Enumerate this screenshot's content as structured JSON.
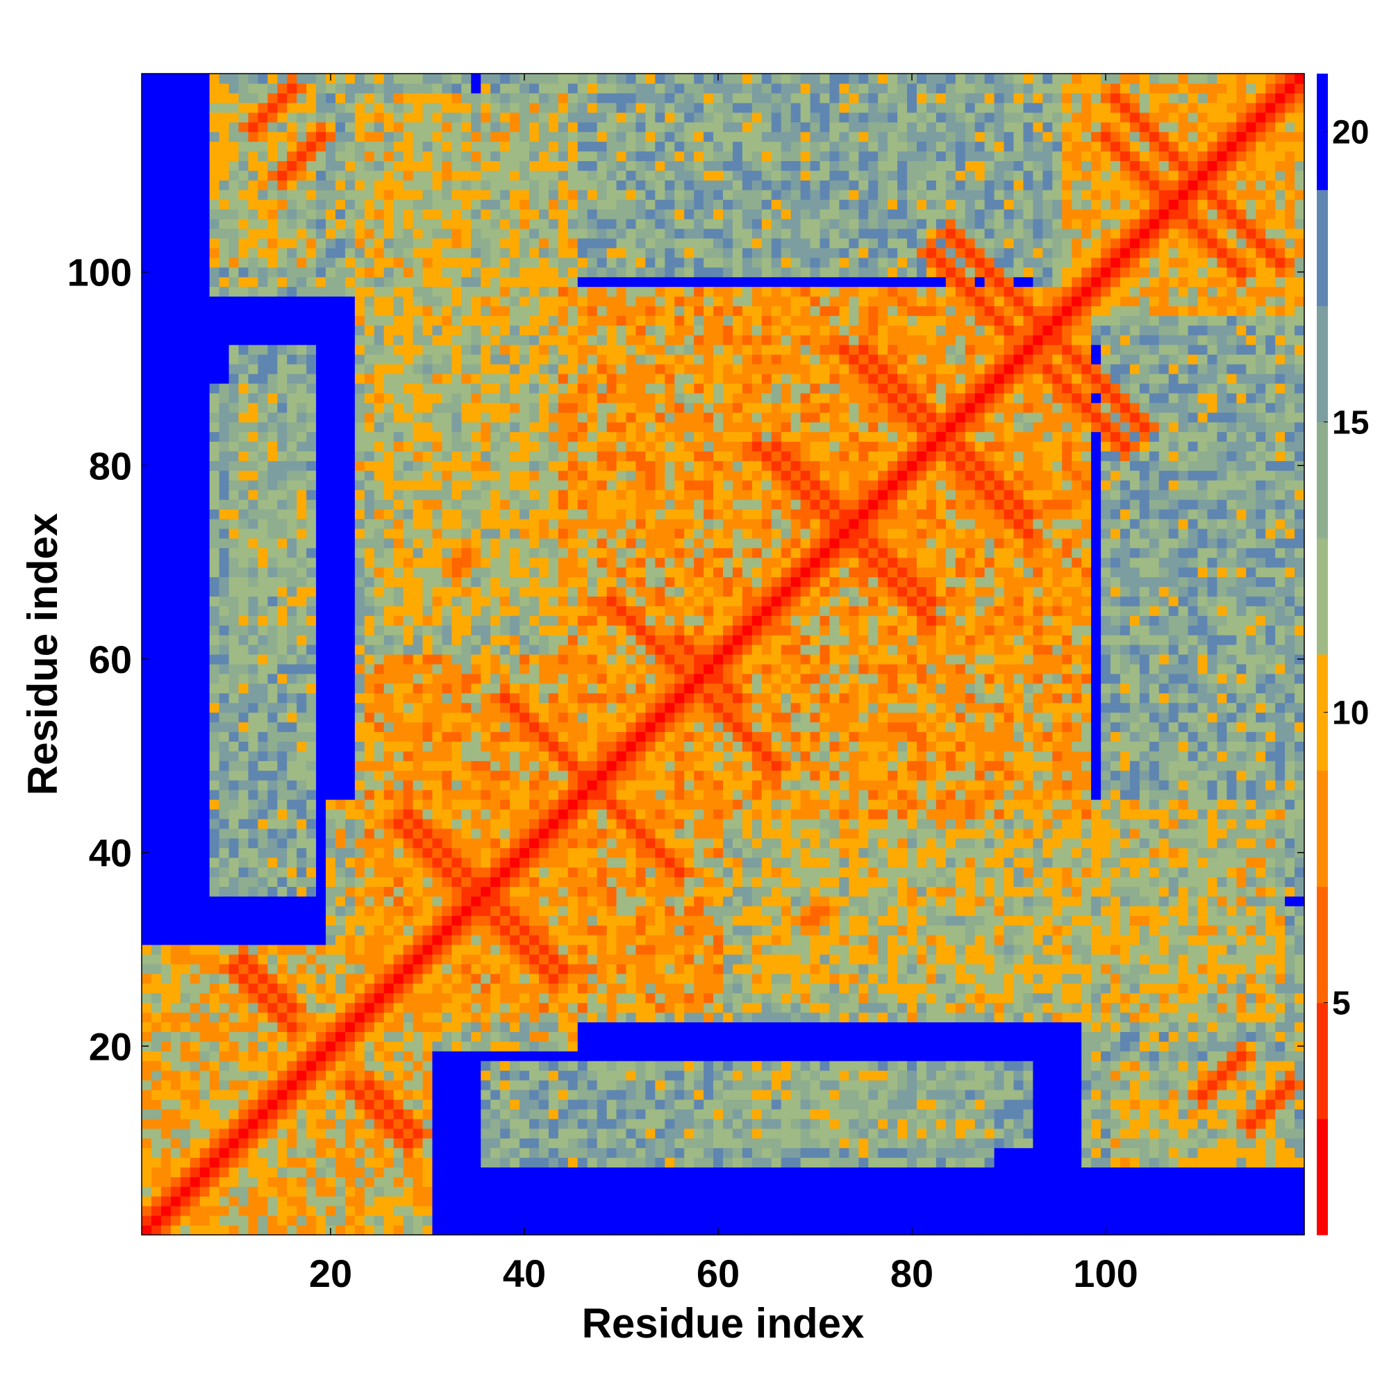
{
  "chart_data": {
    "type": "heatmap",
    "title": "",
    "xlabel": "Residue index",
    "ylabel": "Residue index",
    "n_residues": 120,
    "xlim": [
      1,
      120
    ],
    "ylim": [
      1,
      120
    ],
    "x_ticks": [
      20,
      40,
      60,
      80,
      100
    ],
    "y_ticks": [
      20,
      40,
      60,
      80,
      100
    ],
    "colorbar": {
      "range": [
        1,
        21
      ],
      "ticks": [
        5,
        10,
        15,
        20
      ],
      "colors": [
        "#ff0000",
        "#ff3300",
        "#ff6600",
        "#ff8c00",
        "#ffaa00",
        "#9fba84",
        "#8fad8f",
        "#7c9ea0",
        "#5f86b0",
        "#0000ff"
      ]
    },
    "background_value": 21,
    "diagonal_band": [
      {
        "offset": 0,
        "value": 1
      },
      {
        "offset": 1,
        "value": 3
      },
      {
        "offset": 2,
        "value": 6
      },
      {
        "offset": 3,
        "value": 9
      },
      {
        "offset": 4,
        "value": 12
      },
      {
        "offset": 5,
        "value": 15
      },
      {
        "offset": 6,
        "value": 18
      }
    ],
    "contact_streaks": [
      {
        "i_start": 11,
        "j_start": 29,
        "direction": "anti",
        "length": 6,
        "value": 4
      },
      {
        "i_start": 12,
        "j_start": 115,
        "direction": "parallel",
        "length": 5,
        "value": 4
      },
      {
        "i_start": 22,
        "j_start": 16,
        "direction": "anti",
        "length": 7,
        "value": 4
      },
      {
        "i_start": 28,
        "j_start": 44,
        "direction": "anti",
        "length": 8,
        "value": 4
      },
      {
        "i_start": 36,
        "j_start": 34,
        "direction": "anti",
        "length": 8,
        "value": 4
      },
      {
        "i_start": 38,
        "j_start": 56,
        "direction": "anti",
        "length": 9,
        "value": 4
      },
      {
        "i_start": 48,
        "j_start": 46,
        "direction": "anti",
        "length": 9,
        "value": 4
      },
      {
        "i_start": 49,
        "j_start": 66,
        "direction": "anti",
        "length": 8,
        "value": 4
      },
      {
        "i_start": 56,
        "j_start": 62,
        "direction": "anti",
        "length": 6,
        "value": 4
      },
      {
        "i_start": 60,
        "j_start": 55,
        "direction": "anti",
        "length": 7,
        "value": 4
      },
      {
        "i_start": 66,
        "j_start": 82,
        "direction": "anti",
        "length": 9,
        "value": 4
      },
      {
        "i_start": 74,
        "j_start": 72,
        "direction": "anti",
        "length": 9,
        "value": 4
      },
      {
        "i_start": 75,
        "j_start": 92,
        "direction": "anti",
        "length": 9,
        "value": 4
      },
      {
        "i_start": 83,
        "j_start": 82,
        "direction": "anti",
        "length": 10,
        "value": 4
      },
      {
        "i_start": 84,
        "j_start": 104,
        "direction": "anti",
        "length": 10,
        "value": 4
      },
      {
        "i_start": 94,
        "j_start": 90,
        "direction": "anti",
        "length": 9,
        "value": 4
      },
      {
        "i_start": 101,
        "j_start": 118,
        "direction": "anti",
        "length": 8,
        "value": 4
      },
      {
        "i_start": 107,
        "j_start": 107,
        "direction": "anti",
        "length": 8,
        "value": 4
      },
      {
        "i_start": 110,
        "j_start": 15,
        "direction": "parallel",
        "length": 5,
        "value": 4
      },
      {
        "i_start": 33,
        "j_start": 70,
        "direction": "parallel",
        "length": 2,
        "value": 6
      },
      {
        "i_start": 69,
        "j_start": 33,
        "direction": "parallel",
        "length": 2,
        "value": 6
      }
    ],
    "contact_regions": [
      {
        "i_range": [
          8,
          18
        ],
        "j_range": [
          101,
          119
        ],
        "value": 15
      },
      {
        "i_range": [
          23,
          45
        ],
        "j_range": [
          20,
          118
        ],
        "value": 15
      },
      {
        "i_range": [
          44,
          98
        ],
        "j_range": [
          44,
          98
        ],
        "value": 13
      },
      {
        "i_range": [
          24,
          60
        ],
        "j_range": [
          24,
          60
        ],
        "value": 13
      },
      {
        "i_range": [
          64,
          100
        ],
        "j_range": [
          25,
          44
        ],
        "value": 16
      },
      {
        "i_range": [
          25,
          44
        ],
        "j_range": [
          64,
          100
        ],
        "value": 16
      },
      {
        "i_range": [
          98,
          120
        ],
        "j_range": [
          8,
          34
        ],
        "value": 16
      },
      {
        "i_range": [
          8,
          18
        ],
        "j_range": [
          36,
          88
        ],
        "value": 17
      },
      {
        "i_range": [
          100,
          120
        ],
        "j_range": [
          36,
          96
        ],
        "value": 17
      },
      {
        "i_range": [
          60,
          92
        ],
        "j_range": [
          10,
          18
        ],
        "value": 17
      },
      {
        "i_range": [
          96,
          120
        ],
        "j_range": [
          96,
          120
        ],
        "value": 14
      },
      {
        "i_range": [
          1,
          30
        ],
        "j_range": [
          1,
          30
        ],
        "value": 14
      }
    ]
  }
}
